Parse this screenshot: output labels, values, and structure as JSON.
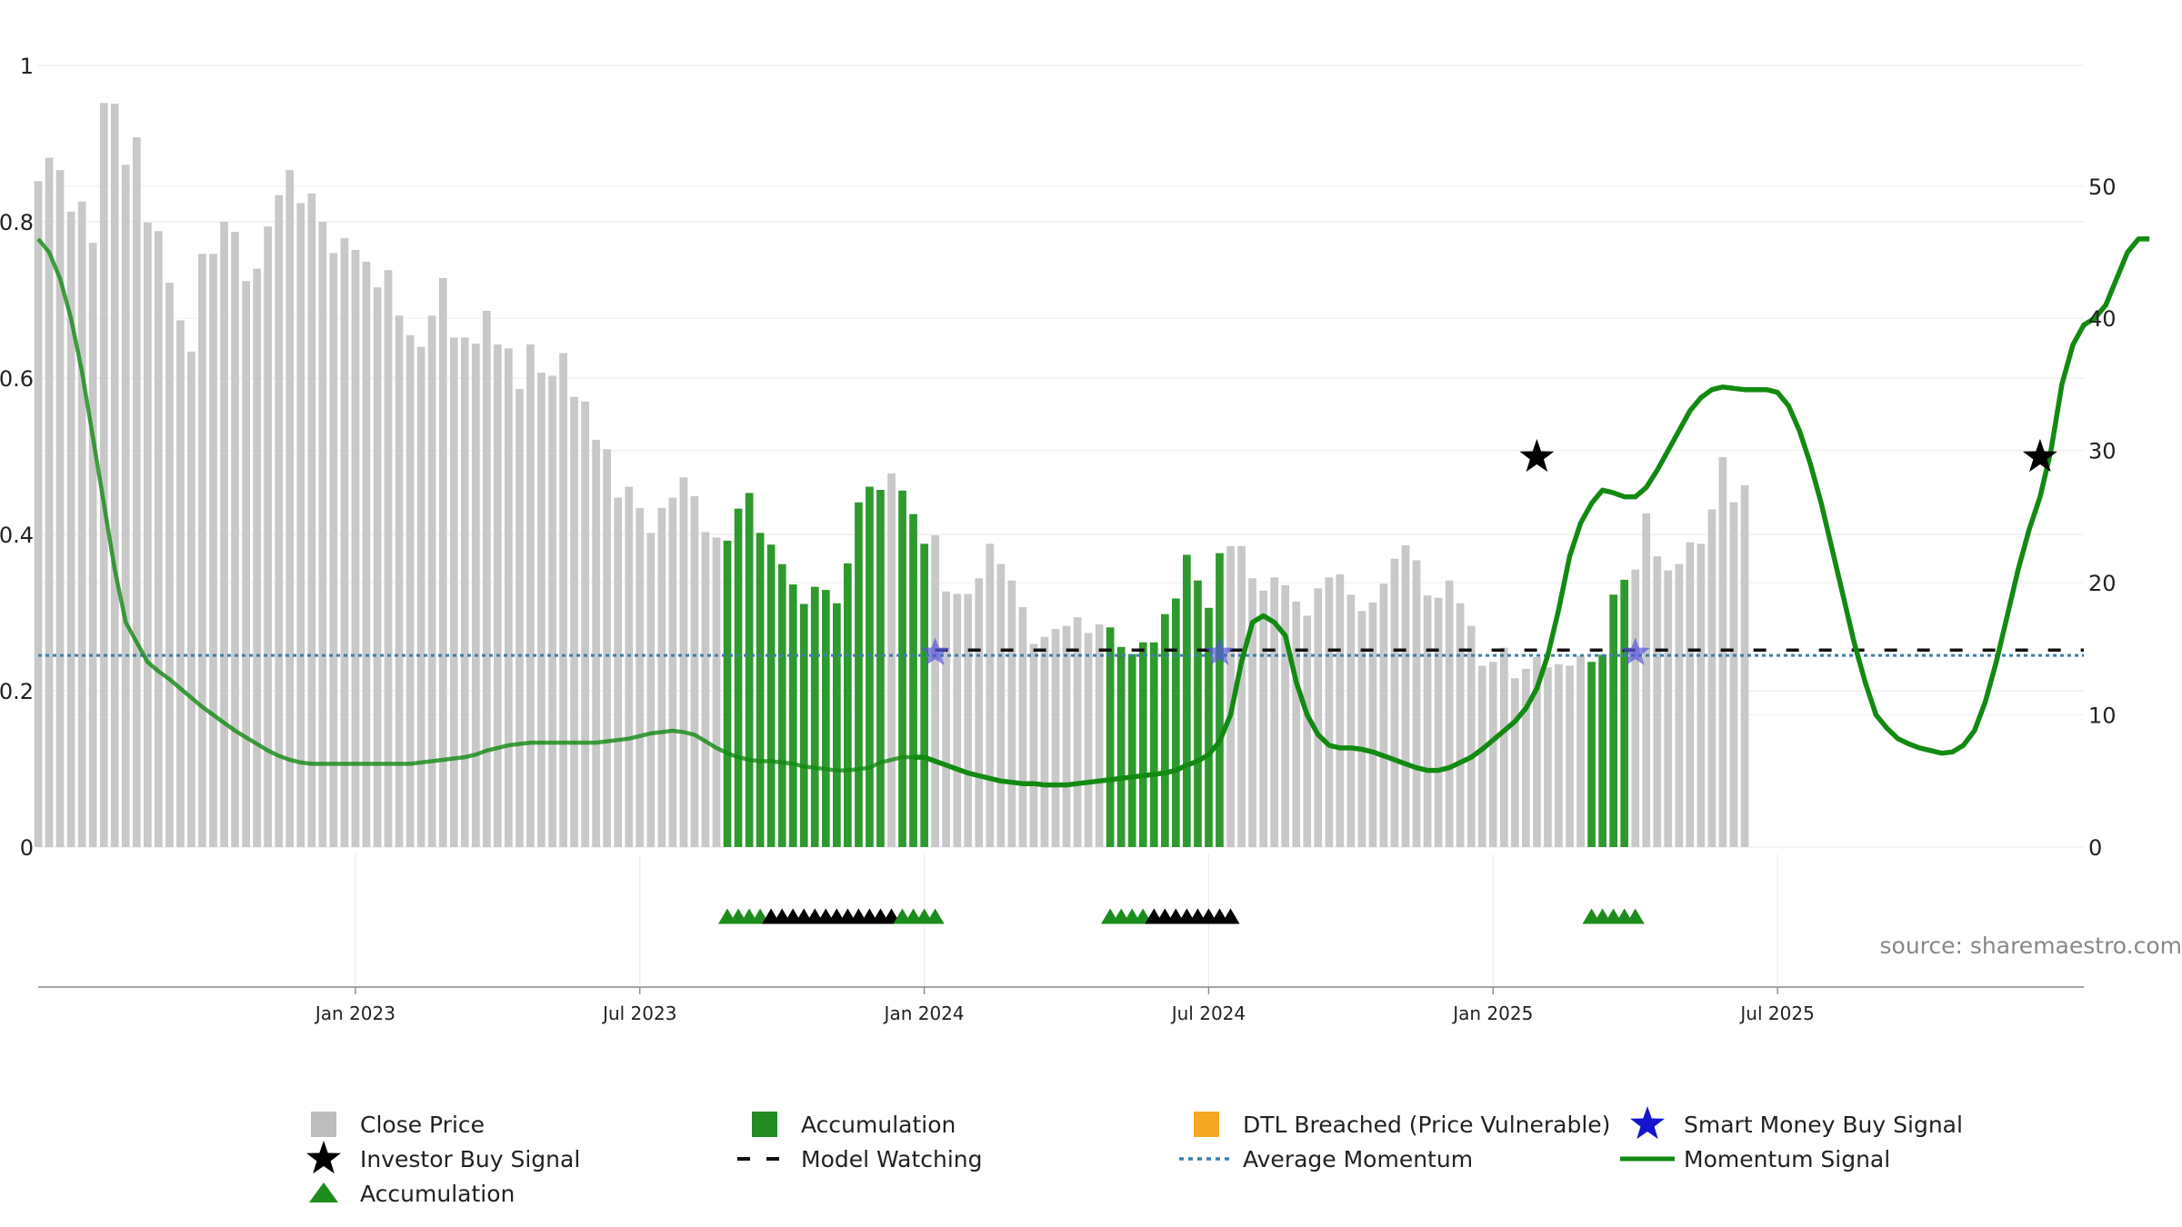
{
  "chart_data": {
    "type": "bar",
    "title": "",
    "xlabel": "",
    "ylabel": "",
    "left_axis": {
      "ylim": [
        0,
        1.0
      ],
      "ticks": [
        "0",
        "0.2",
        "0.4",
        "0.6",
        "0.8",
        "1"
      ]
    },
    "right_axis": {
      "ylim": [
        0,
        64
      ],
      "ticks": [
        "0",
        "10",
        "20",
        "30",
        "40",
        "50"
      ]
    },
    "x_ticks": [
      "Jan 2023",
      "Jul 2023",
      "Jan 2024",
      "Jul 2024",
      "Jan 2025",
      "Jul 2025"
    ],
    "x_tick_weeks": [
      29,
      55,
      81,
      107,
      133,
      159
    ],
    "grid": true,
    "legend_placement": "bottom",
    "colors": {
      "close_price": "#c8c8c8",
      "accumulation_bar": "#2e9a2e",
      "momentum": "#128a12",
      "average_momentum": "#3f7fa8",
      "model_watching": "#111111",
      "investor_star": "#000000",
      "smart_money_star": "#5555dd",
      "dtl": "#f5a623",
      "triangle_green": "#1c8c1c",
      "triangle_black": "#000000"
    },
    "close_price": [
      0.852,
      0.882,
      0.866,
      0.813,
      0.826,
      0.773,
      0.952,
      0.951,
      0.873,
      0.908,
      0.799,
      0.788,
      0.722,
      0.674,
      0.634,
      0.759,
      0.759,
      0.8,
      0.787,
      0.724,
      0.74,
      0.794,
      0.834,
      0.866,
      0.824,
      0.836,
      0.8,
      0.76,
      0.779,
      0.764,
      0.749,
      0.716,
      0.738,
      0.68,
      0.655,
      0.64,
      0.68,
      0.728,
      0.652,
      0.652,
      0.644,
      0.686,
      0.643,
      0.638,
      0.586,
      0.643,
      0.607,
      0.603,
      0.632,
      0.576,
      0.57,
      0.521,
      0.509,
      0.447,
      0.461,
      0.434,
      0.402,
      0.434,
      0.447,
      0.473,
      0.449,
      0.403,
      0.396,
      0.392,
      0.433,
      0.453,
      0.402,
      0.387,
      0.362,
      0.336,
      0.311,
      0.333,
      0.329,
      0.312,
      0.363,
      0.441,
      0.461,
      0.457,
      0.478,
      0.456,
      0.426,
      0.388,
      0.399,
      0.327,
      0.324,
      0.324,
      0.344,
      0.388,
      0.362,
      0.341,
      0.307,
      0.26,
      0.269,
      0.279,
      0.283,
      0.294,
      0.274,
      0.285,
      0.281,
      0.256,
      0.247,
      0.262,
      0.262,
      0.298,
      0.318,
      0.374,
      0.341,
      0.306,
      0.376,
      0.385,
      0.385,
      0.344,
      0.328,
      0.345,
      0.335,
      0.314,
      0.296,
      0.331,
      0.345,
      0.349,
      0.323,
      0.302,
      0.313,
      0.337,
      0.369,
      0.386,
      0.367,
      0.322,
      0.319,
      0.341,
      0.312,
      0.283,
      0.232,
      0.237,
      0.255,
      0.216,
      0.228,
      0.243,
      0.23,
      0.234,
      0.232,
      0.245,
      0.237,
      0.246,
      0.323,
      0.342,
      0.355,
      0.427,
      0.372,
      0.354,
      0.362,
      0.39,
      0.388,
      0.432,
      0.499,
      0.441,
      0.463
    ],
    "accumulation_bar_ranges": [
      [
        63,
        77
      ],
      [
        79,
        81
      ],
      [
        98,
        108
      ],
      [
        142,
        145
      ]
    ],
    "momentum_signal": [
      46,
      45,
      43,
      40,
      36,
      31,
      26,
      21,
      17,
      15.5,
      14,
      13.3,
      12.7,
      12.0,
      11.3,
      10.6,
      10.0,
      9.4,
      8.8,
      8.3,
      7.8,
      7.3,
      6.9,
      6.6,
      6.4,
      6.3,
      6.3,
      6.3,
      6.3,
      6.3,
      6.3,
      6.3,
      6.3,
      6.3,
      6.3,
      6.4,
      6.5,
      6.6,
      6.7,
      6.8,
      7.0,
      7.3,
      7.5,
      7.7,
      7.8,
      7.9,
      7.9,
      7.9,
      7.9,
      7.9,
      7.9,
      7.9,
      8.0,
      8.1,
      8.2,
      8.4,
      8.6,
      8.7,
      8.8,
      8.7,
      8.5,
      8.0,
      7.5,
      7.1,
      6.8,
      6.6,
      6.5,
      6.5,
      6.4,
      6.3,
      6.1,
      6.0,
      5.9,
      5.8,
      5.8,
      5.9,
      6.0,
      6.4,
      6.6,
      6.8,
      6.8,
      6.8,
      6.5,
      6.2,
      5.9,
      5.6,
      5.4,
      5.2,
      5.0,
      4.9,
      4.8,
      4.8,
      4.7,
      4.7,
      4.7,
      4.8,
      4.9,
      5.0,
      5.1,
      5.2,
      5.3,
      5.4,
      5.5,
      5.6,
      5.8,
      6.2,
      6.5,
      7.0,
      8.0,
      10.0,
      14.0,
      17.0,
      17.5,
      17.0,
      16.0,
      12.5,
      10.0,
      8.5,
      7.7,
      7.5,
      7.5,
      7.4,
      7.2,
      6.9,
      6.6,
      6.3,
      6.0,
      5.8,
      5.8,
      6.0,
      6.4,
      6.8,
      7.4,
      8.1,
      8.8,
      9.5,
      10.5,
      12.0,
      14.5,
      18.0,
      22.0,
      24.5,
      26.0,
      27.0,
      26.8,
      26.5,
      26.5,
      27.2,
      28.5,
      30.0,
      31.5,
      33.0,
      34.0,
      34.6,
      34.8,
      34.7,
      34.6,
      34.6,
      34.6,
      34.4,
      33.4,
      31.5,
      29.0,
      26.0,
      22.5,
      19.0,
      15.5,
      12.5,
      10.0,
      9.0,
      8.2,
      7.8,
      7.5,
      7.3,
      7.1,
      7.2,
      7.7,
      8.8,
      11.0,
      14.0,
      17.5,
      21.0,
      24.0,
      26.5,
      30.0,
      35.0,
      38.0,
      39.5,
      40.0,
      41.0,
      43.0,
      45.0,
      46.0,
      46.0
    ],
    "momentum_faded_until_index": 80,
    "average_momentum": 14.5,
    "model_watching": {
      "value": 14.9,
      "from_week": 82
    },
    "investor_buy_signals": [
      {
        "week": 137,
        "value": 29.5
      },
      {
        "week": 183,
        "value": 29.5
      }
    ],
    "smart_money_buy_signals": [
      {
        "week": 82,
        "value": 14.7
      },
      {
        "week": 108,
        "value": 14.7
      },
      {
        "week": 146,
        "value": 14.7
      }
    ],
    "triangle_markers": [
      {
        "from": 63,
        "to": 66,
        "color": "green"
      },
      {
        "from": 67,
        "to": 78,
        "color": "black"
      },
      {
        "from": 79,
        "to": 82,
        "color": "green"
      },
      {
        "from": 98,
        "to": 101,
        "color": "green"
      },
      {
        "from": 102,
        "to": 109,
        "color": "black"
      },
      {
        "from": 142,
        "to": 146,
        "color": "green"
      }
    ],
    "legend": [
      {
        "label": "Close Price",
        "symbol": "square",
        "color": "#bdbdbd"
      },
      {
        "label": "Accumulation",
        "symbol": "square",
        "color": "#228b22"
      },
      {
        "label": "DTL Breached (Price Vulnerable)",
        "symbol": "square",
        "color": "#f5a623"
      },
      {
        "label": "Smart Money Buy Signal",
        "symbol": "star",
        "color": "#1515d0"
      },
      {
        "label": "Investor Buy Signal",
        "symbol": "star",
        "color": "#000000"
      },
      {
        "label": "Model Watching",
        "symbol": "dash",
        "color": "#111111"
      },
      {
        "label": "Average Momentum",
        "symbol": "dot",
        "color": "#3f7fa8"
      },
      {
        "label": "Momentum Signal",
        "symbol": "line",
        "color": "#128a12"
      },
      {
        "label": "Accumulation",
        "symbol": "triangle",
        "color": "#1c8c1c"
      }
    ]
  },
  "source_text": "source: sharemaestro.com"
}
